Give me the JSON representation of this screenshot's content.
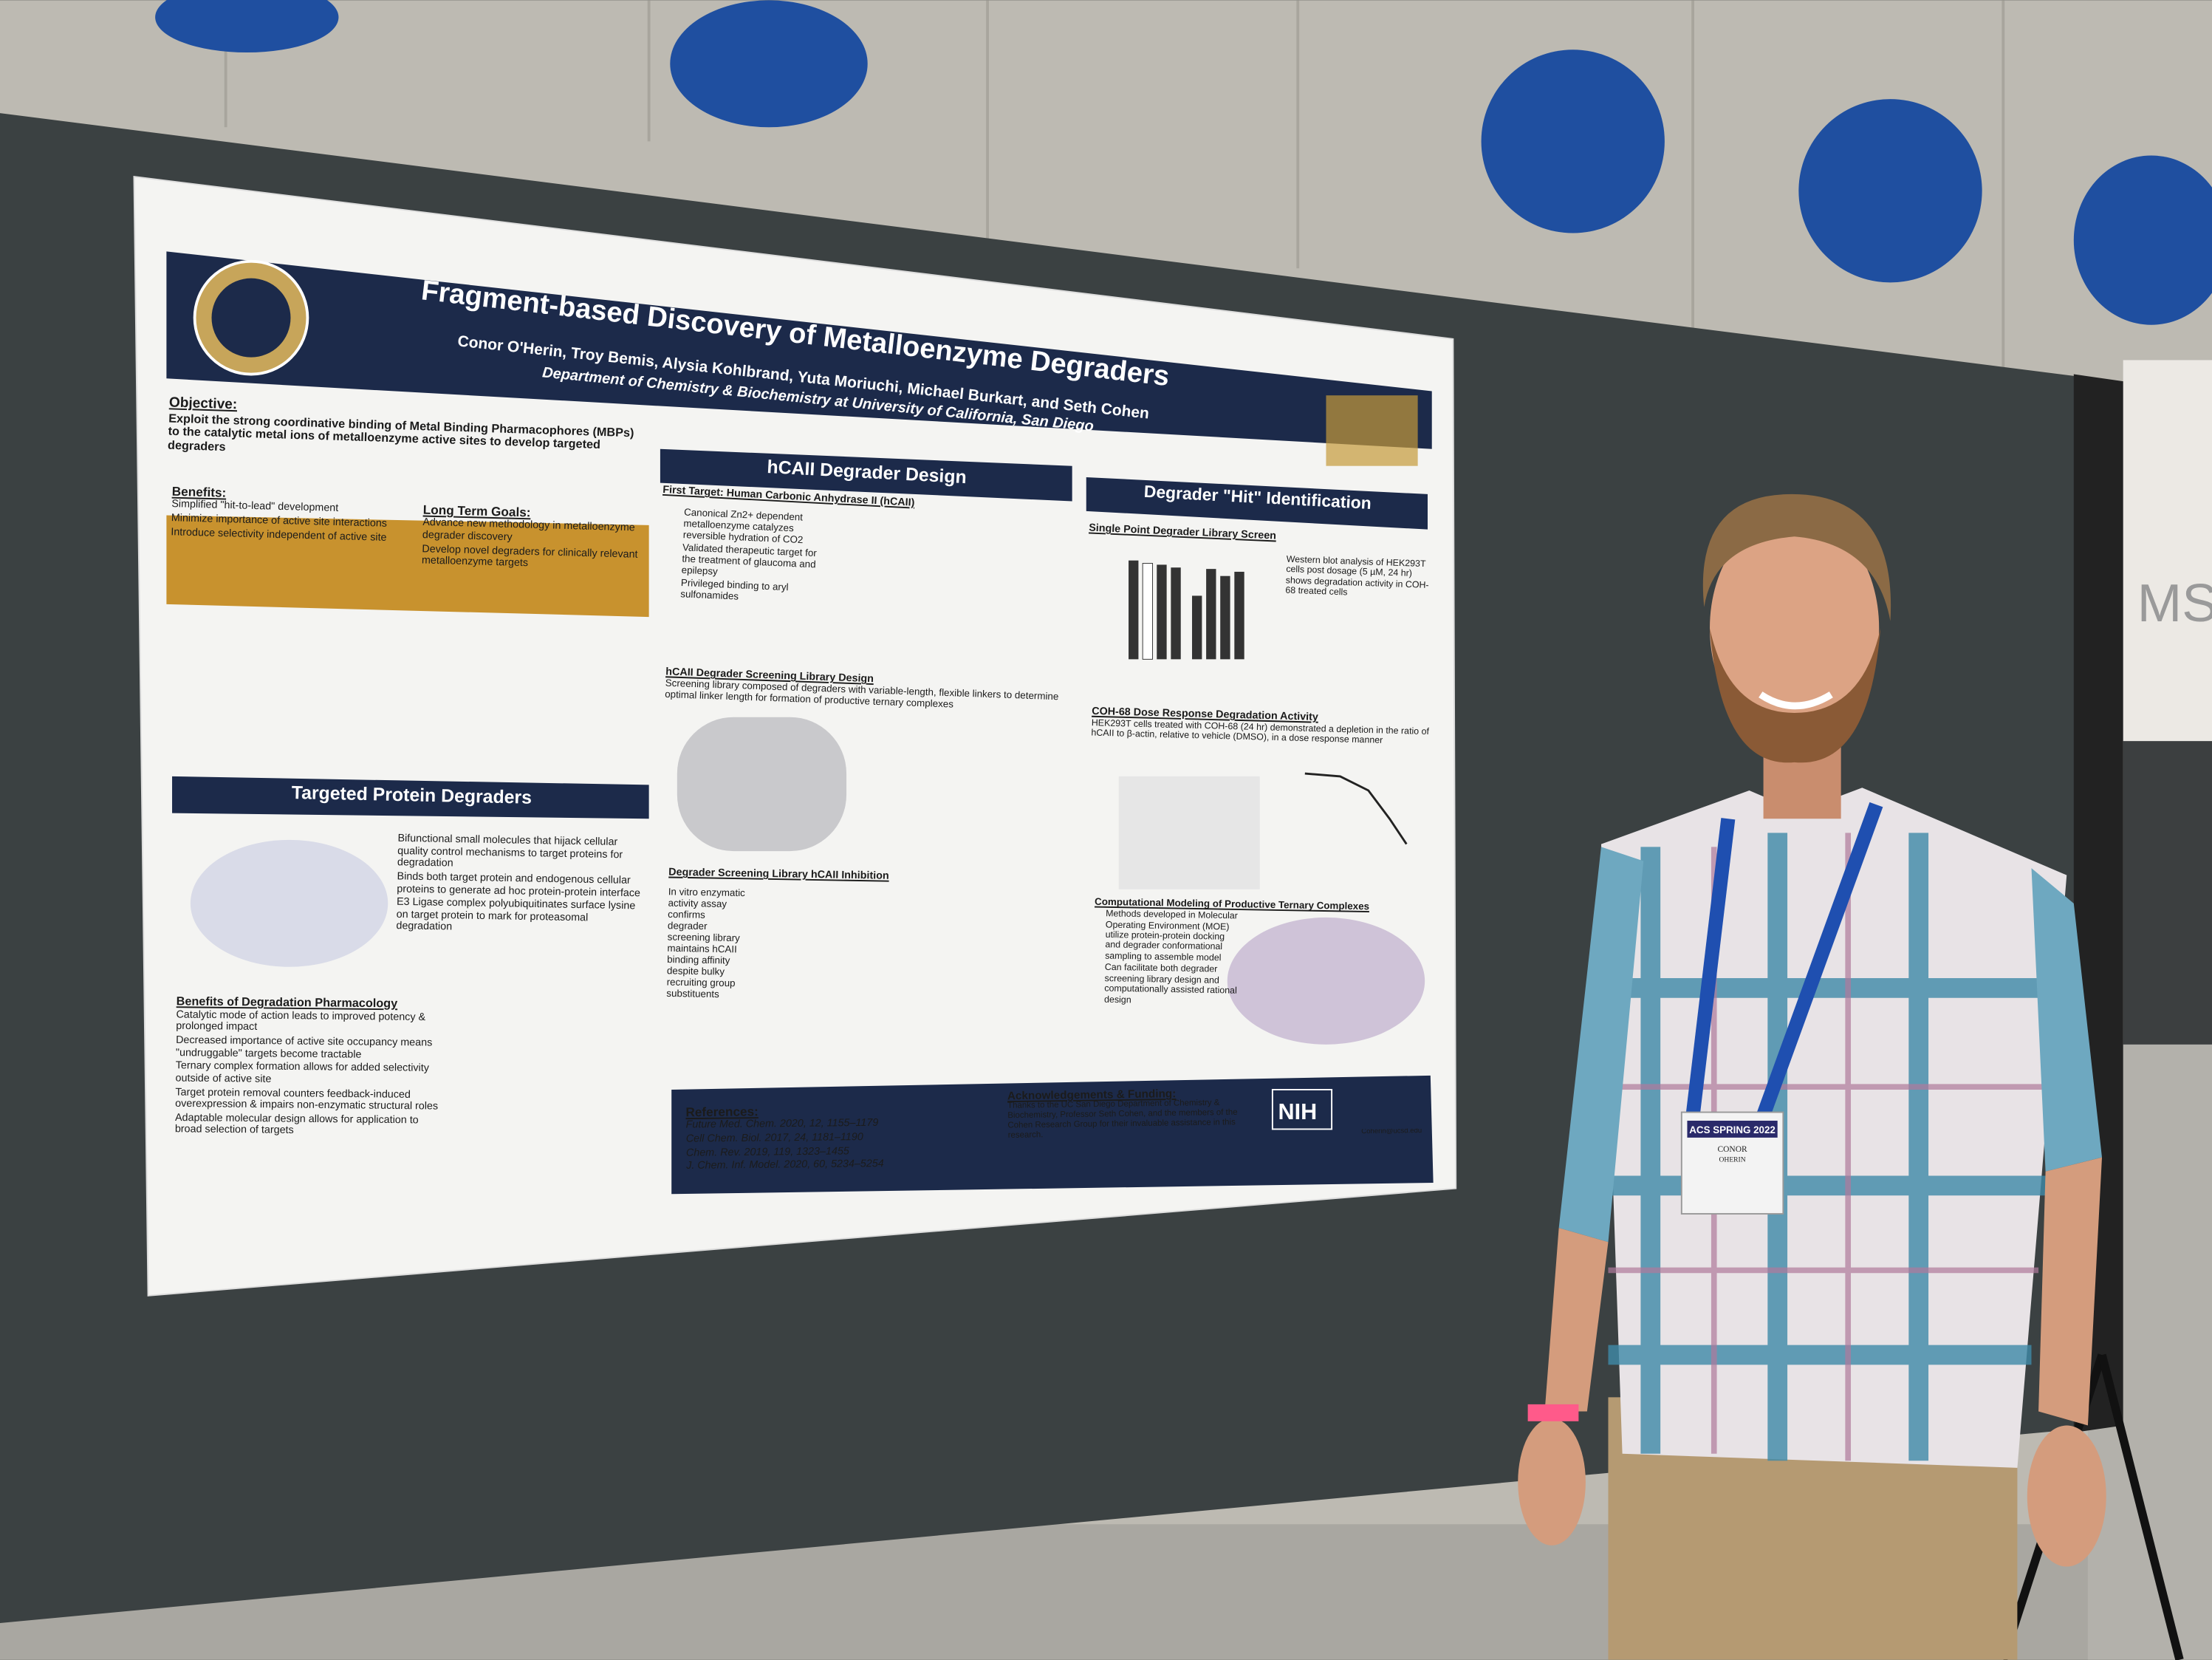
{
  "poster": {
    "title": "Fragment-based Discovery of Metalloenzyme Degraders",
    "authors": "Conor O'Herin, Troy Bemis, Alysia Kohlbrand, Yuta Moriuchi, Michael Burkart, and Seth Cohen",
    "affiliation": "Department of Chemistry & Biochemistry at University of California, San Diego",
    "objective": {
      "heading": "Objective:",
      "text": "Exploit the strong coordinative binding of Metal Binding Pharmacophores (MBPs) to the catalytic metal ions of metalloenzyme active sites to develop targeted degraders"
    },
    "benefits": {
      "heading": "Benefits:",
      "items": [
        "Simplified \"hit-to-lead\" development",
        "Minimize importance of active site interactions",
        "Introduce selectivity independent of active site"
      ]
    },
    "long_term_goals": {
      "heading": "Long Term Goals:",
      "items": [
        "Advance new methodology in metalloenzyme degrader discovery",
        "Develop novel degraders for clinically relevant metalloenzyme targets"
      ]
    },
    "hcaii_design": {
      "heading": "hCAII Degrader Design",
      "first_target": "First Target: Human Carbonic Anhydrase II (hCAII)",
      "items": [
        "Canonical Zn2+ dependent metalloenzyme catalyzes reversible hydration of CO2",
        "Validated therapeutic target for the treatment of glaucoma and epilepsy",
        "Privileged binding to aryl sulfonamides"
      ],
      "library_heading": "hCAII Degrader Screening Library Design",
      "library_text": "Screening library composed of degraders with variable-length, flexible linkers to determine optimal linker length for formation of productive ternary complexes",
      "inhibition_heading": "Degrader Screening Library hCAII Inhibition",
      "inhibition_text": "In vitro enzymatic activity assay confirms degrader screening library maintains hCAII binding affinity despite bulky recruiting group substituents"
    },
    "hit_identification": {
      "heading": "Degrader \"Hit\" Identification",
      "single_point": "Single Point Degrader Library Screen",
      "western_blot": "Western blot analysis of HEK293T cells post dosage (5 µM, 24 hr) shows degradation activity in COH-68 treated cells",
      "dose_heading": "COH-68 Dose Response Degradation Activity",
      "dose_text": "HEK293T cells treated with COH-68 (24 hr) demonstrated a depletion in the ratio of hCAII to β-actin, relative to vehicle (DMSO), in a dose response manner",
      "modeling_heading": "Computational Modeling of Productive Ternary Complexes",
      "modeling_items": [
        "Methods developed in Molecular Operating Environment (MOE) utilize protein-protein docking and degrader conformational sampling to assemble model",
        "Can facilitate both degrader screening library design and computationally assisted rational design"
      ]
    },
    "tpd": {
      "heading": "Targeted Protein Degraders",
      "items": [
        "Bifunctional small molecules that hijack cellular quality control mechanisms to target proteins for degradation",
        "Binds both target protein and endogenous cellular proteins to generate ad hoc protein-protein interface",
        "E3 Ligase complex polyubiquitinates surface lysine on target protein to mark for proteasomal degradation"
      ]
    },
    "pharmacology": {
      "heading": "Benefits of Degradation Pharmacology",
      "items": [
        "Catalytic mode of action leads to improved potency & prolonged impact",
        "Decreased importance of active site occupancy means \"undruggable\" targets become tractable",
        "Ternary complex formation allows for added selectivity outside of active site",
        "Target protein removal counters feedback-induced overexpression & impairs non-enzymatic structural roles",
        "Adaptable molecular design allows for application to broad selection of targets"
      ]
    },
    "references": {
      "heading": "References:",
      "items": [
        "Future Med. Chem. 2020, 12, 1155–1179",
        "Cell Chem. Biol. 2017, 24, 1181–1190",
        "Chem. Rev. 2019, 119, 1323–1455",
        "J. Chem. Inf. Model. 2020, 60, 5234–5254"
      ]
    },
    "acknowledgements": {
      "heading": "Acknowledgements & Funding:",
      "text": "Thanks to the UC San Diego Department of Chemistry & Biochemistry, Professor Seth Cohen, and the members of the Cohen Research Group for their invaluable assistance in this research."
    },
    "nih": "NIH",
    "email": "Coherin@ucsd.edu"
  },
  "badge": {
    "event": "ACS SPRING 2022",
    "first_name": "CONOR",
    "last_name": "OHERIN"
  },
  "sign": "MS"
}
